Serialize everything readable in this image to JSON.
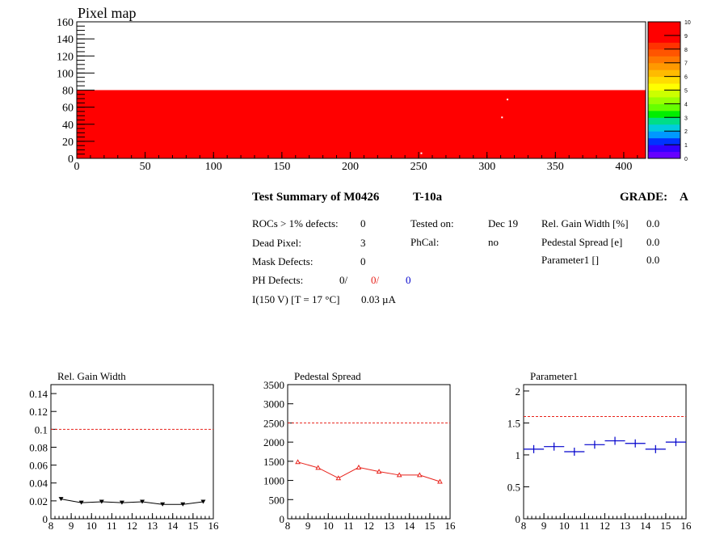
{
  "pixel_map": {
    "title": "Pixel map",
    "x_ticks": [
      "0",
      "50",
      "100",
      "150",
      "200",
      "250",
      "300",
      "350",
      "400"
    ],
    "y_ticks": [
      "0",
      "20",
      "40",
      "60",
      "80",
      "100",
      "120",
      "140",
      "160"
    ],
    "palette_ticks": [
      "0",
      "1",
      "2",
      "3",
      "4",
      "5",
      "6",
      "7",
      "8",
      "9",
      "10"
    ],
    "colors": {
      "filled": "#ff0000",
      "dead": "#ffffff"
    }
  },
  "summary": {
    "title": "Test Summary of M0426",
    "test": "T-10a",
    "grade_label": "GRADE:",
    "grade": "A",
    "rocs_label": "ROCs > 1% defects:",
    "rocs_value": "0",
    "dead_label": "Dead Pixel:",
    "dead_value": "3",
    "mask_label": "Mask Defects:",
    "mask_value": "0",
    "ph_label": "PH Defects:",
    "ph_value1": "0/",
    "ph_value2": "0/",
    "ph_value3": "0",
    "current_label": "I(150 V) [T = 17 °C]",
    "current_value": "0.03 µA",
    "tested_label": "Tested on:",
    "tested_value": "Dec 19",
    "phcal_label": "PhCal:",
    "phcal_value": "no",
    "relgain_label": "Rel. Gain Width [%]",
    "relgain_value": "0.0",
    "pedestal_label": "Pedestal Spread [e]",
    "pedestal_value": "0.0",
    "param1_label": "Parameter1 []",
    "param1_value": "0.0"
  },
  "chart_data": [
    {
      "type": "heatmap",
      "title": "Pixel map",
      "xlim": [
        0,
        416
      ],
      "ylim": [
        0,
        160
      ],
      "filled_region": {
        "x": [
          0,
          416
        ],
        "y": [
          0,
          80
        ],
        "value": 10
      },
      "dead_pixels": [
        [
          252,
          6
        ],
        [
          311,
          48
        ],
        [
          315,
          69
        ]
      ],
      "z_range": [
        0,
        10
      ]
    },
    {
      "type": "scatter",
      "title": "Rel. Gain Width",
      "xlim": [
        8,
        16
      ],
      "ylim": [
        0,
        0.15
      ],
      "x_ticks": [
        "8",
        "9",
        "10",
        "11",
        "12",
        "13",
        "14",
        "15",
        "16"
      ],
      "y_ticks": [
        "0",
        "0.02",
        "0.04",
        "0.06",
        "0.08",
        "0.1",
        "0.12",
        "0.14"
      ],
      "threshold": 0.1,
      "x": [
        8.5,
        9.5,
        10.5,
        11.5,
        12.5,
        13.5,
        14.5,
        15.5
      ],
      "y": [
        0.022,
        0.018,
        0.019,
        0.018,
        0.019,
        0.016,
        0.016,
        0.019
      ],
      "color": "#000000"
    },
    {
      "type": "line",
      "title": "Pedestal Spread",
      "xlim": [
        8,
        16
      ],
      "ylim": [
        0,
        3500
      ],
      "x_ticks": [
        "8",
        "9",
        "10",
        "11",
        "12",
        "13",
        "14",
        "15",
        "16"
      ],
      "y_ticks": [
        "0",
        "500",
        "1000",
        "1500",
        "2000",
        "2500",
        "3000",
        "3500"
      ],
      "threshold": 2500,
      "x": [
        8.5,
        9.5,
        10.5,
        11.5,
        12.5,
        13.5,
        14.5,
        15.5
      ],
      "y": [
        1480,
        1330,
        1060,
        1340,
        1230,
        1140,
        1140,
        970
      ],
      "color": "#e8221b"
    },
    {
      "type": "scatter",
      "title": "Parameter1",
      "xlim": [
        8,
        16
      ],
      "ylim": [
        0,
        2.1
      ],
      "x_ticks": [
        "8",
        "9",
        "10",
        "11",
        "12",
        "13",
        "14",
        "15",
        "16"
      ],
      "y_ticks": [
        "0",
        "0.5",
        "1",
        "1.5",
        "2"
      ],
      "threshold": 1.6,
      "x": [
        8.5,
        9.5,
        10.5,
        11.5,
        12.5,
        13.5,
        14.5,
        15.5
      ],
      "y": [
        1.09,
        1.13,
        1.05,
        1.16,
        1.22,
        1.18,
        1.09,
        1.2
      ],
      "color": "#0000cc"
    }
  ]
}
